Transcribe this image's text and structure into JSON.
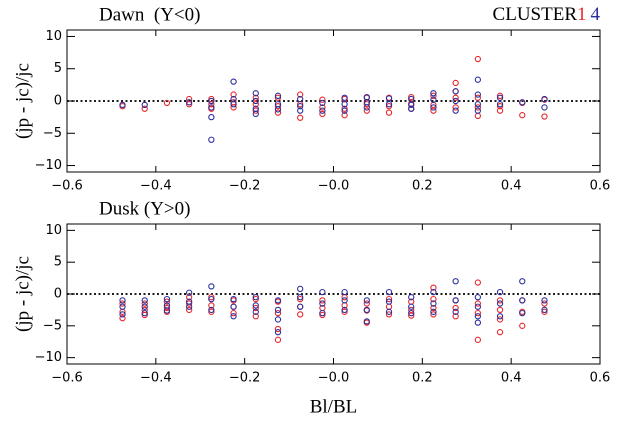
{
  "chart_data": [
    {
      "type": "scatter",
      "title": "Dawn  (Y<0)",
      "legend_title": "CLUSTER",
      "ylabel": "(jp - jc)/jc",
      "xlim": [
        -0.6,
        0.6
      ],
      "ylim": [
        -11,
        11
      ],
      "xticks": [
        {
          "value": -0.6,
          "label": "−0.6"
        },
        {
          "value": -0.4,
          "label": "−0.4"
        },
        {
          "value": -0.2,
          "label": "−0.2"
        },
        {
          "value": 0,
          "label": "−0.0"
        },
        0.2,
        0.4,
        0.6
      ],
      "yticks": [
        {
          "value": -10,
          "label": "−10"
        },
        {
          "value": -5,
          "label": "−5"
        },
        0,
        5,
        10
      ],
      "reference_line": 0,
      "series": [
        {
          "name": "1",
          "color": "#e8262b",
          "x": [
            -0.475,
            -0.425,
            -0.375,
            -0.325,
            -0.325,
            -0.275,
            -0.275,
            -0.275,
            -0.225,
            -0.225,
            -0.225,
            -0.175,
            -0.175,
            -0.175,
            -0.125,
            -0.125,
            -0.125,
            -0.075,
            -0.075,
            -0.075,
            -0.025,
            -0.025,
            -0.025,
            0.025,
            0.025,
            0.025,
            0.075,
            0.075,
            0.075,
            0.125,
            0.125,
            0.125,
            0.175,
            0.175,
            0.175,
            0.225,
            0.225,
            0.225,
            0.275,
            0.275,
            0.275,
            0.275,
            0.325,
            0.325,
            0.325,
            0.325,
            0.375,
            0.375,
            0.375,
            0.425,
            0.425,
            0.475,
            0.475
          ],
          "values": [
            -0.8,
            -1.2,
            -0.3,
            -0.5,
            0.3,
            0.3,
            -0.5,
            -1.2,
            1.0,
            -0.2,
            -1.0,
            0.5,
            -0.5,
            -1.5,
            0.5,
            -0.8,
            -1.8,
            1.0,
            -0.5,
            -2.6,
            0.2,
            -1.0,
            -2.0,
            0.3,
            -1.2,
            -2.2,
            0.5,
            -0.5,
            -1.5,
            0.5,
            -0.8,
            -1.8,
            0.6,
            -0.4,
            -1.2,
            0.8,
            -0.6,
            -1.5,
            2.8,
            1.5,
            0.5,
            -1.0,
            6.5,
            0.5,
            -1.0,
            -2.3,
            0.8,
            -0.8,
            -1.5,
            -0.3,
            -2.2,
            0.2,
            -2.4
          ]
        },
        {
          "name": "4",
          "color": "#2b2f9c",
          "x": [
            -0.475,
            -0.425,
            -0.325,
            -0.275,
            -0.275,
            -0.275,
            -0.275,
            -0.225,
            -0.225,
            -0.225,
            -0.175,
            -0.175,
            -0.175,
            -0.175,
            -0.125,
            -0.125,
            -0.125,
            -0.075,
            -0.075,
            -0.075,
            -0.025,
            -0.025,
            0.025,
            0.025,
            0.025,
            0.075,
            0.075,
            0.075,
            0.125,
            0.125,
            0.175,
            0.175,
            0.175,
            0.225,
            0.225,
            0.225,
            0.275,
            0.275,
            0.275,
            0.325,
            0.325,
            0.325,
            0.325,
            0.375,
            0.375,
            0.425,
            0.475,
            0.475
          ],
          "values": [
            -0.6,
            -0.6,
            -0.2,
            -6.0,
            -2.5,
            -1.0,
            0.0,
            3.0,
            0.3,
            -0.5,
            1.2,
            0.0,
            -1.2,
            -2.0,
            0.8,
            -0.5,
            -1.3,
            0.3,
            -0.8,
            -1.5,
            -0.3,
            -1.5,
            0.5,
            -0.5,
            -1.5,
            0.6,
            -0.2,
            -1.0,
            0.4,
            -0.5,
            0.3,
            -0.6,
            -1.2,
            1.2,
            0.2,
            -1.0,
            1.5,
            0.0,
            -1.5,
            3.3,
            1.0,
            -0.5,
            -1.5,
            0.5,
            -0.5,
            -0.2,
            0.3,
            -1.0
          ]
        }
      ]
    },
    {
      "type": "scatter",
      "title": "Dusk (Y>0)",
      "ylabel": "(jp - jc)/jc",
      "xlabel": "Bl/BL",
      "xlim": [
        -0.6,
        0.6
      ],
      "ylim": [
        -11,
        11
      ],
      "xticks": [
        {
          "value": -0.6,
          "label": "−0.6"
        },
        {
          "value": -0.4,
          "label": "−0.4"
        },
        {
          "value": -0.2,
          "label": "−0.2"
        },
        {
          "value": 0,
          "label": "−0.0"
        },
        0.2,
        0.4,
        0.6
      ],
      "yticks": [
        {
          "value": -10,
          "label": "−10"
        },
        {
          "value": -5,
          "label": "−5"
        },
        0,
        5,
        10
      ],
      "reference_line": 0,
      "series": [
        {
          "color": "#e8262b",
          "x": [
            -0.475,
            -0.475,
            -0.475,
            -0.425,
            -0.425,
            -0.425,
            -0.375,
            -0.375,
            -0.375,
            -0.325,
            -0.325,
            -0.325,
            -0.275,
            -0.275,
            -0.275,
            -0.225,
            -0.225,
            -0.225,
            -0.175,
            -0.175,
            -0.175,
            -0.125,
            -0.125,
            -0.125,
            -0.125,
            -0.075,
            -0.075,
            -0.075,
            -0.025,
            -0.025,
            -0.025,
            0.025,
            0.025,
            0.025,
            0.075,
            0.075,
            0.075,
            0.125,
            0.125,
            0.125,
            0.175,
            0.175,
            0.175,
            0.225,
            0.225,
            0.225,
            0.225,
            0.275,
            0.275,
            0.275,
            0.325,
            0.325,
            0.325,
            0.325,
            0.375,
            0.375,
            0.375,
            0.375,
            0.425,
            0.425,
            0.425,
            0.475,
            0.475
          ],
          "values": [
            -1.5,
            -2.8,
            -3.8,
            -1.5,
            -2.5,
            -3.3,
            -1.2,
            -2.2,
            -2.8,
            -0.5,
            -1.5,
            -2.5,
            -0.5,
            -1.8,
            -2.8,
            -1.0,
            -2.0,
            -3.0,
            -0.8,
            -2.2,
            -3.5,
            -1.2,
            -3.0,
            -5.5,
            -7.2,
            -0.8,
            -2.0,
            -3.2,
            -1.0,
            -2.2,
            -3.3,
            -0.5,
            -1.8,
            -2.8,
            -1.5,
            -2.6,
            -4.5,
            -0.8,
            -2.0,
            -3.2,
            -1.2,
            -2.5,
            -3.4,
            1.0,
            -0.8,
            -2.2,
            -3.2,
            -1.0,
            -2.2,
            -3.5,
            1.8,
            -1.5,
            -3.0,
            -7.2,
            -1.0,
            -2.5,
            -4.0,
            -6.0,
            -1.0,
            -2.8,
            -5.0,
            -1.5,
            -2.8
          ]
        },
        {
          "color": "#2b2f9c",
          "x": [
            -0.475,
            -0.475,
            -0.475,
            -0.425,
            -0.425,
            -0.425,
            -0.375,
            -0.375,
            -0.375,
            -0.325,
            -0.325,
            -0.325,
            -0.275,
            -0.275,
            -0.275,
            -0.225,
            -0.225,
            -0.225,
            -0.175,
            -0.175,
            -0.175,
            -0.125,
            -0.125,
            -0.125,
            -0.125,
            -0.075,
            -0.075,
            -0.075,
            -0.025,
            -0.025,
            -0.025,
            0.025,
            0.025,
            0.025,
            0.075,
            0.075,
            0.075,
            0.125,
            0.125,
            0.125,
            0.175,
            0.175,
            0.175,
            0.225,
            0.225,
            0.225,
            0.275,
            0.275,
            0.275,
            0.325,
            0.325,
            0.325,
            0.325,
            0.375,
            0.375,
            0.375,
            0.425,
            0.425,
            0.425,
            0.475,
            0.475
          ],
          "values": [
            -1.0,
            -2.0,
            -3.2,
            -1.0,
            -2.0,
            -3.0,
            -0.8,
            -1.8,
            -2.6,
            0.2,
            -1.2,
            -2.0,
            1.2,
            -0.8,
            -2.5,
            -0.8,
            -2.0,
            -3.5,
            -0.5,
            -1.8,
            -2.8,
            -1.0,
            -2.5,
            -4.0,
            -6.0,
            0.8,
            -0.5,
            -2.0,
            0.3,
            -1.5,
            -3.0,
            0.3,
            -1.0,
            -2.5,
            -1.0,
            -2.5,
            -4.3,
            0.3,
            -1.2,
            -2.8,
            -0.5,
            -2.0,
            -3.0,
            0.3,
            -1.5,
            -2.8,
            2.0,
            -1.0,
            -2.8,
            -0.5,
            -2.0,
            -3.5,
            -4.5,
            0.3,
            -1.5,
            -3.5,
            2.0,
            -1.0,
            -3.0,
            -1.0,
            -2.5
          ]
        }
      ]
    }
  ]
}
